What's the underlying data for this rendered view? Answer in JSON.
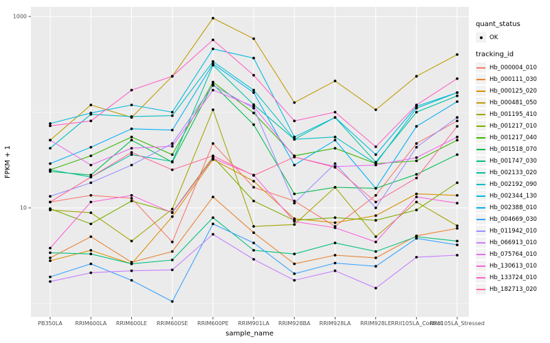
{
  "chart_data": {
    "type": "line",
    "title": "",
    "xlabel": "sample_name",
    "ylabel": "FPKM + 1",
    "y_scale": "log10",
    "ylim": [
      0.72,
      1260
    ],
    "y_ticks": [
      10,
      1000
    ],
    "y_tick_labels": [
      "10",
      "1000"
    ],
    "y_minor_gridlines": [
      1,
      100
    ],
    "grid": "on",
    "legend_position": "right",
    "panel_bg": "#EBEBEB",
    "grid_color": "#FFFFFF",
    "point_color": "#000000",
    "tick_label_color": "#4D4D4D",
    "categories": [
      "PB350LA",
      "RRIM600LA",
      "RRIM600LE",
      "RRIM600SE",
      "RRIM600PE",
      "RRIM901LA",
      "RRIM928BA",
      "RRIM928LA",
      "RRIM928LE",
      "RRII105LA_Control",
      "RRII105LA_Stressed"
    ],
    "series": [
      {
        "name": "Hb_000004_010",
        "color": "#F8766D",
        "values": [
          11.5,
          13.5,
          12.6,
          4.4,
          47,
          16.4,
          11.8,
          6.4,
          13.5,
          47,
          81
        ]
      },
      {
        "name": "Hb_000111_030",
        "color": "#EA8331",
        "values": [
          3.0,
          5.0,
          2.7,
          3.5,
          13,
          5.5,
          2.6,
          3.2,
          3.0,
          5.1,
          6.1
        ]
      },
      {
        "name": "Hb_000125_020",
        "color": "#D89000",
        "values": [
          2.8,
          3.6,
          2.6,
          8.1,
          32,
          19,
          7.7,
          7.0,
          8.3,
          14,
          13.5
        ]
      },
      {
        "name": "Hb_000481_050",
        "color": "#C09B00",
        "values": [
          51,
          119,
          88,
          237,
          960,
          586,
          126,
          212,
          106,
          237,
          400
        ]
      },
      {
        "name": "Hb_001195_410",
        "color": "#A3A500",
        "values": [
          9.5,
          8.9,
          4.5,
          9.7,
          106,
          6.4,
          6.7,
          16.4,
          5.0,
          11.5,
          6.5
        ]
      },
      {
        "name": "Hb_001217_010",
        "color": "#7CAE00",
        "values": [
          9.8,
          6.8,
          11.8,
          9.0,
          34,
          11.8,
          7.4,
          7.9,
          7.4,
          9.5,
          18.3
        ]
      },
      {
        "name": "Hb_001217_040",
        "color": "#39B600",
        "values": [
          25,
          35,
          55,
          36,
          206,
          98,
          35,
          42,
          29,
          31,
          51
        ]
      },
      {
        "name": "Hb_001518_070",
        "color": "#00BB4E",
        "values": [
          24,
          22,
          51,
          30,
          196,
          74,
          14,
          16.4,
          16,
          22.4,
          36
        ]
      },
      {
        "name": "Hb_001747_030",
        "color": "#00C07F",
        "values": [
          3.4,
          3.3,
          2.6,
          2.85,
          7.9,
          3.6,
          3.3,
          4.3,
          3.5,
          5.0,
          4.5
        ]
      },
      {
        "name": "Hb_002133_020",
        "color": "#00C1A3",
        "values": [
          25,
          21,
          36,
          30.5,
          310,
          120,
          52,
          88,
          30,
          100,
          148
        ]
      },
      {
        "name": "Hb_002192_090",
        "color": "#00BFC4",
        "values": [
          42,
          95,
          90,
          92,
          338,
          170,
          52,
          55,
          29,
          110,
          160
        ]
      },
      {
        "name": "Hb_002344_130",
        "color": "#00BAE0",
        "values": [
          76,
          98,
          119,
          100,
          458,
          367,
          55,
          88,
          36,
          115,
          160
        ]
      },
      {
        "name": "Hb_002388_010",
        "color": "#00B0F6",
        "values": [
          29,
          43,
          67,
          65,
          320,
          160,
          28,
          51,
          16,
          71,
          129
        ]
      },
      {
        "name": "Hb_004669_030",
        "color": "#35A2FF",
        "values": [
          1.9,
          2.6,
          1.75,
          1.05,
          6.8,
          4.3,
          2.05,
          2.65,
          2.45,
          4.8,
          4.1
        ]
      },
      {
        "name": "Hb_011942_010",
        "color": "#9590FF",
        "values": [
          13.2,
          18.3,
          28,
          47,
          190,
          110,
          11.2,
          29,
          10,
          43,
          88
        ]
      },
      {
        "name": "Hb_066913_010",
        "color": "#C77CFF",
        "values": [
          1.7,
          2.1,
          2.2,
          2.25,
          5.3,
          2.9,
          1.75,
          2.2,
          1.45,
          3.05,
          3.2
        ]
      },
      {
        "name": "Hb_075764_010",
        "color": "#E76BF3",
        "values": [
          51,
          28,
          42,
          44,
          170,
          115,
          34,
          27,
          28,
          33.5,
          55
        ]
      },
      {
        "name": "Hb_130613_010",
        "color": "#FA62DB",
        "values": [
          3.8,
          11.5,
          13.5,
          8.9,
          33,
          22,
          7.2,
          6.2,
          4.4,
          13,
          11.2
        ]
      },
      {
        "name": "Hb_133724_010",
        "color": "#FF61C9",
        "values": [
          72,
          81,
          170,
          237,
          570,
          243,
          81,
          100,
          43.5,
          119,
          224
        ]
      },
      {
        "name": "Hb_182713_020",
        "color": "#FF6A98",
        "values": [
          11.5,
          21,
          38,
          25,
          35,
          21.8,
          34,
          26.5,
          11.5,
          20.5,
          71
        ]
      }
    ],
    "legend": {
      "quant_status": {
        "title": "quant_status",
        "items": [
          {
            "label": "OK",
            "marker": "point"
          }
        ]
      },
      "tracking_id": {
        "title": "tracking_id"
      }
    }
  }
}
